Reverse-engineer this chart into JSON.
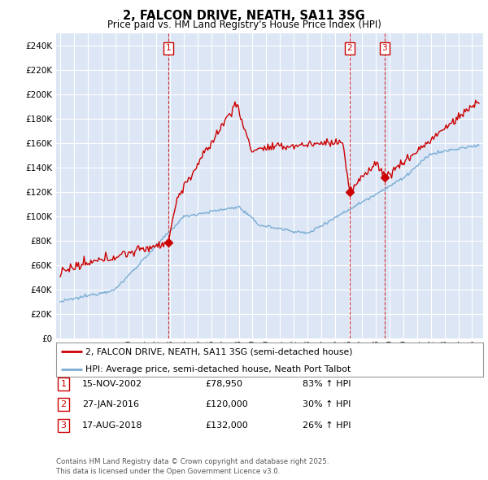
{
  "title": "2, FALCON DRIVE, NEATH, SA11 3SG",
  "subtitle": "Price paid vs. HM Land Registry's House Price Index (HPI)",
  "legend_line1": "2, FALCON DRIVE, NEATH, SA11 3SG (semi-detached house)",
  "legend_line2": "HPI: Average price, semi-detached house, Neath Port Talbot",
  "transactions": [
    {
      "num": 1,
      "date": "15-NOV-2002",
      "price": "£78,950",
      "change": "83% ↑ HPI",
      "year": 2002.88,
      "price_val": 78950
    },
    {
      "num": 2,
      "date": "27-JAN-2016",
      "price": "£120,000",
      "change": "30% ↑ HPI",
      "year": 2016.07,
      "price_val": 120000
    },
    {
      "num": 3,
      "date": "17-AUG-2018",
      "price": "£132,000",
      "change": "26% ↑ HPI",
      "year": 2018.63,
      "price_val": 132000
    }
  ],
  "footnote1": "Contains HM Land Registry data © Crown copyright and database right 2025.",
  "footnote2": "This data is licensed under the Open Government Licence v3.0.",
  "ylim": [
    0,
    250000
  ],
  "yticks": [
    0,
    20000,
    40000,
    60000,
    80000,
    100000,
    120000,
    140000,
    160000,
    180000,
    200000,
    220000,
    240000
  ],
  "background_color": "#dce6f5",
  "grid_color": "#ffffff",
  "fig_bg_color": "#ffffff",
  "red_color": "#cc0000",
  "blue_color": "#7aadd4",
  "xlim_start": 1994.7,
  "xlim_end": 2025.8
}
